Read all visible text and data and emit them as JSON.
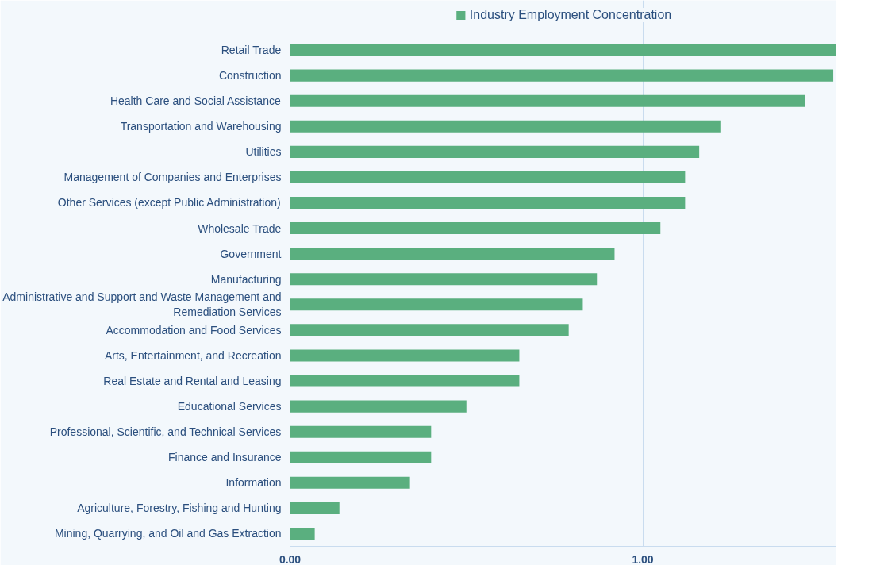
{
  "chart_data": {
    "type": "bar",
    "orientation": "horizontal",
    "categories": [
      "Retail Trade",
      "Construction",
      "Health Care and Social Assistance",
      "Transportation and Warehousing",
      "Utilities",
      "Management of Companies and Enterprises",
      "Other Services (except Public Administration)",
      "Wholesale Trade",
      "Government",
      "Manufacturing",
      "Administrative and Support and Waste Management and\nRemediation Services",
      "Accommodation and Food Services",
      "Arts, Entertainment, and Recreation",
      "Real Estate and Rental and Leasing",
      "Educational Services",
      "Professional, Scientific, and Technical Services",
      "Finance and Insurance",
      "Information",
      "Agriculture, Forestry, Fishing and Hunting",
      "Mining, Quarrying, and Oil and Gas Extraction"
    ],
    "series": [
      {
        "name": "Industry Employment Concentration",
        "color": "#5aaf7f",
        "values": [
          1.55,
          1.54,
          1.46,
          1.22,
          1.16,
          1.12,
          1.12,
          1.05,
          0.92,
          0.87,
          0.83,
          0.79,
          0.65,
          0.65,
          0.5,
          0.4,
          0.4,
          0.34,
          0.14,
          0.07
        ]
      }
    ],
    "xlim": [
      0,
      1.55
    ],
    "xticks": [
      {
        "value": 0,
        "label": "0.00"
      },
      {
        "value": 1,
        "label": "1.00"
      }
    ],
    "grid": "x",
    "legend": "top"
  }
}
